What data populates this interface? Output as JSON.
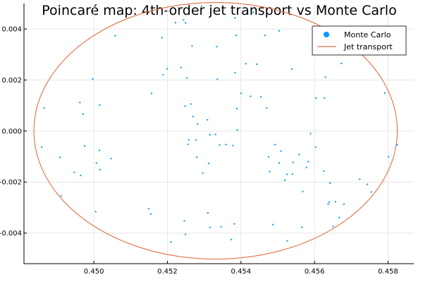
{
  "chart_data": {
    "type": "scatter",
    "title": "Poincaré map: 4th-order jet transport vs Monte Carlo",
    "xlabel": "",
    "ylabel": "",
    "xlim": [
      0.4481,
      0.4587
    ],
    "ylim": [
      -0.0052,
      0.005
    ],
    "xticks": [
      0.45,
      0.452,
      0.454,
      0.456,
      0.458
    ],
    "xtick_labels": [
      "0.450",
      "0.452",
      "0.454",
      "0.456",
      "0.458"
    ],
    "yticks": [
      -0.004,
      -0.002,
      0.0,
      0.002,
      0.004
    ],
    "ytick_labels": [
      "-0.004",
      "-0.002",
      "0.000",
      "0.002",
      "0.004"
    ],
    "grid": true,
    "legend_position": "top-right",
    "series": [
      {
        "name": "Monte Carlo",
        "kind": "scatter",
        "color": "#009AFA",
        "points": [
          [
            0.45293,
            0.0049
          ],
          [
            0.45433,
            0.00465
          ],
          [
            0.45244,
            0.00436
          ],
          [
            0.45222,
            0.00425
          ],
          [
            0.45249,
            0.00424
          ],
          [
            0.45384,
            0.00444
          ],
          [
            0.45504,
            0.00393
          ],
          [
            0.45465,
            0.00375
          ],
          [
            0.45595,
            0.00377
          ],
          [
            0.45058,
            0.00374
          ],
          [
            0.45185,
            0.00366
          ],
          [
            0.45387,
            0.00375
          ],
          [
            0.45267,
            0.00333
          ],
          [
            0.45334,
            0.00331
          ],
          [
            0.45413,
            0.00264
          ],
          [
            0.45443,
            0.00262
          ],
          [
            0.45673,
            0.00265
          ],
          [
            0.45199,
            0.00244
          ],
          [
            0.45237,
            0.00249
          ],
          [
            0.45538,
            0.00243
          ],
          [
            0.45188,
            0.00221
          ],
          [
            0.45384,
            0.00228
          ],
          [
            0.45253,
            0.00208
          ],
          [
            0.45336,
            0.00203
          ],
          [
            0.4563,
            0.00211
          ],
          [
            0.44997,
            0.00204
          ],
          [
            0.45157,
            0.00148
          ],
          [
            0.454,
            0.00148
          ],
          [
            0.45426,
            0.00136
          ],
          [
            0.45454,
            0.00134
          ],
          [
            0.45791,
            0.00149
          ],
          [
            0.45604,
            0.00129
          ],
          [
            0.45627,
            0.00129
          ],
          [
            0.45016,
            0.00102
          ],
          [
            0.45264,
            0.00106
          ],
          [
            0.45248,
            0.00098
          ],
          [
            0.45389,
            0.00088
          ],
          [
            0.4547,
            0.0009
          ],
          [
            0.44962,
            0.00112
          ],
          [
            0.44865,
            0.00091
          ],
          [
            0.44971,
            0.00066
          ],
          [
            0.4527,
            0.00057
          ],
          [
            0.45309,
            0.00044
          ],
          [
            0.45282,
            0.00028
          ],
          [
            0.4539,
            4e-05
          ],
          [
            0.45589,
            -0.0001
          ],
          [
            0.45316,
            -0.00015
          ],
          [
            0.45331,
            -0.00013
          ],
          [
            0.45258,
            -0.00035
          ],
          [
            0.45278,
            -0.00035
          ],
          [
            0.45256,
            -0.00052
          ],
          [
            0.45342,
            -0.00054
          ],
          [
            0.45359,
            -0.00053
          ],
          [
            0.45378,
            -0.00057
          ],
          [
            0.45493,
            -0.00053
          ],
          [
            0.45603,
            -0.00063
          ],
          [
            0.45825,
            -0.00054
          ],
          [
            0.44975,
            -0.00058
          ],
          [
            0.45015,
            -0.00076
          ],
          [
            0.45047,
            -0.00108
          ],
          [
            0.45007,
            -0.00125
          ],
          [
            0.45017,
            -0.00151
          ],
          [
            0.44858,
            -0.00063
          ],
          [
            0.44908,
            -0.00103
          ],
          [
            0.4528,
            -0.00103
          ],
          [
            0.45312,
            -0.00127
          ],
          [
            0.45509,
            -0.00079
          ],
          [
            0.45504,
            -0.00125
          ],
          [
            0.45558,
            -0.00092
          ],
          [
            0.45542,
            -0.00123
          ],
          [
            0.45583,
            -0.0012
          ],
          [
            0.45578,
            -0.00143
          ],
          [
            0.45475,
            -0.00101
          ],
          [
            0.45478,
            -0.00159
          ],
          [
            0.45525,
            -0.0017
          ],
          [
            0.4554,
            -0.00169
          ],
          [
            0.45625,
            -0.00157
          ],
          [
            0.45801,
            -0.00101
          ],
          [
            0.44947,
            -0.00162
          ],
          [
            0.44964,
            -0.00174
          ],
          [
            0.45296,
            -0.00165
          ],
          [
            0.45519,
            -0.00193
          ],
          [
            0.45723,
            -0.00189
          ],
          [
            0.45743,
            -0.00209
          ],
          [
            0.45642,
            -0.00204
          ],
          [
            0.45568,
            -0.00237
          ],
          [
            0.45755,
            -0.00239
          ],
          [
            0.44911,
            -0.00254
          ],
          [
            0.4564,
            -0.00279
          ],
          [
            0.45657,
            -0.00277
          ],
          [
            0.45637,
            -0.00287
          ],
          [
            0.4568,
            -0.00287
          ],
          [
            0.45667,
            -0.00339
          ],
          [
            0.45149,
            -0.00305
          ],
          [
            0.45155,
            -0.00325
          ],
          [
            0.45005,
            -0.00316
          ],
          [
            0.4531,
            -0.00321
          ],
          [
            0.45246,
            -0.00352
          ],
          [
            0.45316,
            -0.00378
          ],
          [
            0.45346,
            -0.00375
          ],
          [
            0.45382,
            -0.00364
          ],
          [
            0.45487,
            -0.00367
          ],
          [
            0.45566,
            -0.00377
          ],
          [
            0.4565,
            -0.00374
          ],
          [
            0.45249,
            -0.00405
          ],
          [
            0.45374,
            -0.00425
          ],
          [
            0.45526,
            -0.00431
          ],
          [
            0.4521,
            -0.00435
          ]
        ]
      },
      {
        "name": "Jet transport",
        "kind": "curve",
        "shape": "ellipse",
        "color": "#E26F46",
        "center": [
          0.45331,
          1e-05
        ],
        "semi_axes": [
          0.00494,
          0.00503
        ]
      }
    ]
  }
}
